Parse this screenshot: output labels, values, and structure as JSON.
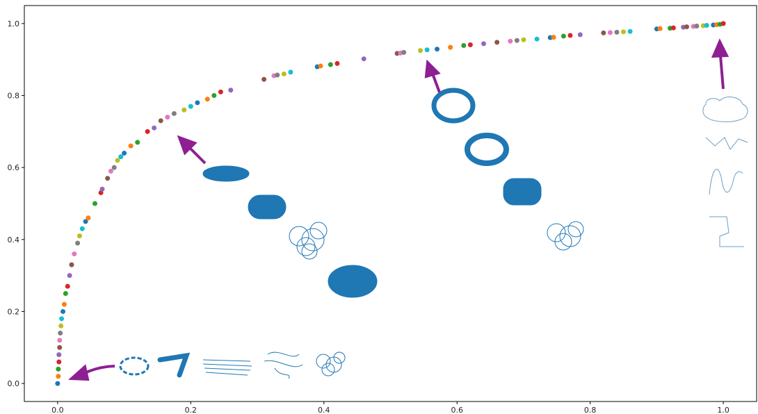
{
  "chart_data": {
    "type": "scatter",
    "xlim": [
      -0.05,
      1.05
    ],
    "ylim": [
      -0.05,
      1.05
    ],
    "xticks": [
      {
        "value": 0,
        "label": "0.0"
      },
      {
        "value": 0.2,
        "label": "0.2"
      },
      {
        "value": 0.4,
        "label": "0.4"
      },
      {
        "value": 0.6,
        "label": "0.6"
      },
      {
        "value": 0.8,
        "label": "0.8"
      },
      {
        "value": 1,
        "label": "1.0"
      }
    ],
    "yticks": [
      {
        "value": 0,
        "label": "0.0"
      },
      {
        "value": 0.2,
        "label": "0.2"
      },
      {
        "value": 0.4,
        "label": "0.4"
      },
      {
        "value": 0.6,
        "label": "0.6"
      },
      {
        "value": 0.8,
        "label": "0.8"
      },
      {
        "value": 1,
        "label": "1.0"
      }
    ],
    "palette": [
      "#1f77b4",
      "#ff7f0e",
      "#2ca02c",
      "#d62728",
      "#9467bd",
      "#8c564b",
      "#e377c2",
      "#7f7f7f",
      "#bcbd22",
      "#17becf"
    ],
    "x": [
      0,
      0.001,
      0.001,
      0.002,
      0.002,
      0.003,
      0.003,
      0.004,
      0.005,
      0.006,
      0.008,
      0.01,
      0.012,
      0.015,
      0.018,
      0.021,
      0.025,
      0.03,
      0.033,
      0.037,
      0.042,
      0.046,
      0.056,
      0.065,
      0.067,
      0.075,
      0.08,
      0.085,
      0.09,
      0.095,
      0.1,
      0.11,
      0.12,
      0.135,
      0.145,
      0.155,
      0.165,
      0.175,
      0.19,
      0.2,
      0.21,
      0.225,
      0.235,
      0.245,
      0.26,
      0.31,
      0.325,
      0.33,
      0.34,
      0.35,
      0.39,
      0.395,
      0.41,
      0.42,
      0.46,
      0.51,
      0.515,
      0.52,
      0.545,
      0.555,
      0.57,
      0.59,
      0.61,
      0.62,
      0.64,
      0.66,
      0.68,
      0.69,
      0.7,
      0.72,
      0.74,
      0.745,
      0.76,
      0.77,
      0.785,
      0.82,
      0.83,
      0.84,
      0.85,
      0.86,
      0.9,
      0.905,
      0.92,
      0.925,
      0.94,
      0.945,
      0.955,
      0.96,
      0.97,
      0.975,
      0.985,
      0.99,
      0.995,
      1.0
    ],
    "values": [
      0,
      0.02,
      0.04,
      0.06,
      0.08,
      0.1,
      0.12,
      0.14,
      0.16,
      0.18,
      0.2,
      0.22,
      0.25,
      0.27,
      0.3,
      0.33,
      0.36,
      0.39,
      0.41,
      0.43,
      0.45,
      0.46,
      0.5,
      0.53,
      0.54,
      0.57,
      0.59,
      0.6,
      0.62,
      0.63,
      0.64,
      0.66,
      0.67,
      0.7,
      0.71,
      0.73,
      0.74,
      0.75,
      0.76,
      0.77,
      0.78,
      0.79,
      0.8,
      0.81,
      0.815,
      0.845,
      0.855,
      0.857,
      0.86,
      0.865,
      0.88,
      0.882,
      0.886,
      0.889,
      0.902,
      0.917,
      0.918,
      0.92,
      0.925,
      0.927,
      0.929,
      0.934,
      0.939,
      0.941,
      0.944,
      0.948,
      0.951,
      0.953,
      0.955,
      0.957,
      0.961,
      0.962,
      0.965,
      0.967,
      0.969,
      0.974,
      0.975,
      0.976,
      0.977,
      0.978,
      0.985,
      0.986,
      0.987,
      0.988,
      0.99,
      0.991,
      0.992,
      0.993,
      0.994,
      0.995,
      0.996,
      0.997,
      0.998,
      1.0
    ]
  }
}
